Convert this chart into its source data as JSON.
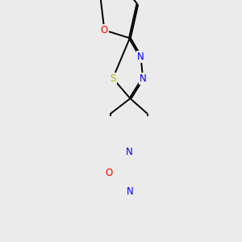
{
  "background_color": "#ebebeb",
  "bond_color": "#000000",
  "atom_colors": {
    "N": "#0000ff",
    "O": "#ff0000",
    "S": "#b8b800",
    "C": "#000000"
  },
  "figsize": [
    3.0,
    3.0
  ],
  "dpi": 100,
  "lw": 1.4,
  "fs": 8.5,
  "double_sep": 0.07
}
